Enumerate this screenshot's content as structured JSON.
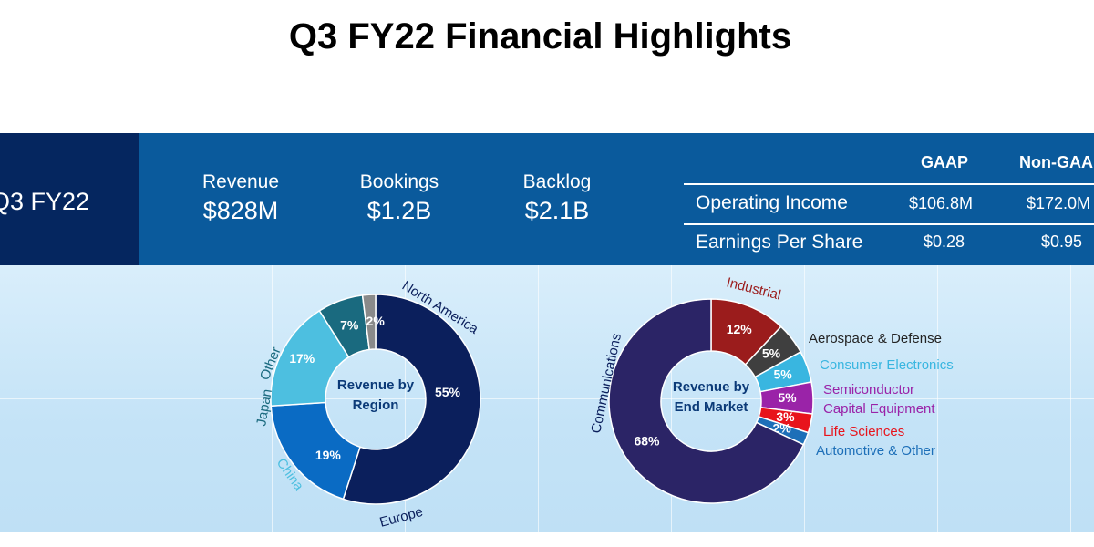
{
  "title": "Q3 FY22 Financial Highlights",
  "banner": {
    "period": "Q3 FY22",
    "kpis": [
      {
        "label": "Revenue",
        "value": "$828M"
      },
      {
        "label": "Bookings",
        "value": "$1.2B"
      },
      {
        "label": "Backlog",
        "value": "$2.1B"
      }
    ],
    "table": {
      "headers": [
        "GAAP",
        "Non-GAAP"
      ],
      "rows": [
        {
          "label": "Operating Income",
          "gaap": "$106.8M",
          "non_gaap": "$172.0M"
        },
        {
          "label": "Earnings Per Share",
          "gaap": "$0.28",
          "non_gaap": "$0.95"
        }
      ]
    }
  },
  "chart_data": [
    {
      "type": "pie",
      "title": "Revenue by Region",
      "categories": [
        "North America",
        "Europe",
        "China",
        "Japan",
        "Other"
      ],
      "values": [
        55,
        19,
        17,
        7,
        2
      ],
      "value_labels": [
        "55%",
        "19%",
        "17%",
        "7%",
        "2%"
      ],
      "colors": [
        "#0b1f5c",
        "#0a6bc4",
        "#4dbfe0",
        "#1a6a7f",
        "#8a8a8a"
      ],
      "label_colors": [
        "#0b1f5c",
        "#0b1f5c",
        "#4dbfe0",
        "#1a6a7f",
        "#1a6a7f"
      ],
      "legend": "none"
    },
    {
      "type": "pie",
      "title": "Revenue by End Market",
      "categories": [
        "Industrial",
        "Aerospace & Defense",
        "Consumer Electronics",
        "Semiconductor Capital Equipment",
        "Life Sciences",
        "Automotive & Other",
        "Communications"
      ],
      "display_labels": [
        "Industrial",
        "Aerospace & Defense",
        "Consumer Electronics",
        "Semiconductor",
        "Capital Equipment",
        "Life Sciences",
        "Automotive & Other",
        "Communications"
      ],
      "values": [
        12,
        5,
        5,
        5,
        3,
        2,
        68
      ],
      "value_labels": [
        "12%",
        "5%",
        "5%",
        "5%",
        "3%",
        "2%",
        "68%"
      ],
      "colors": [
        "#9b1c1c",
        "#3f3f3f",
        "#39b6e0",
        "#9a23a8",
        "#e8141c",
        "#1d6fb8",
        "#2b2466"
      ],
      "label_colors": [
        "#9b1c1c",
        "#222222",
        "#39b6e0",
        "#9a23a8",
        "#9a23a8",
        "#e8141c",
        "#1d6fb8",
        "#0b1f5c"
      ],
      "legend": "none"
    }
  ]
}
